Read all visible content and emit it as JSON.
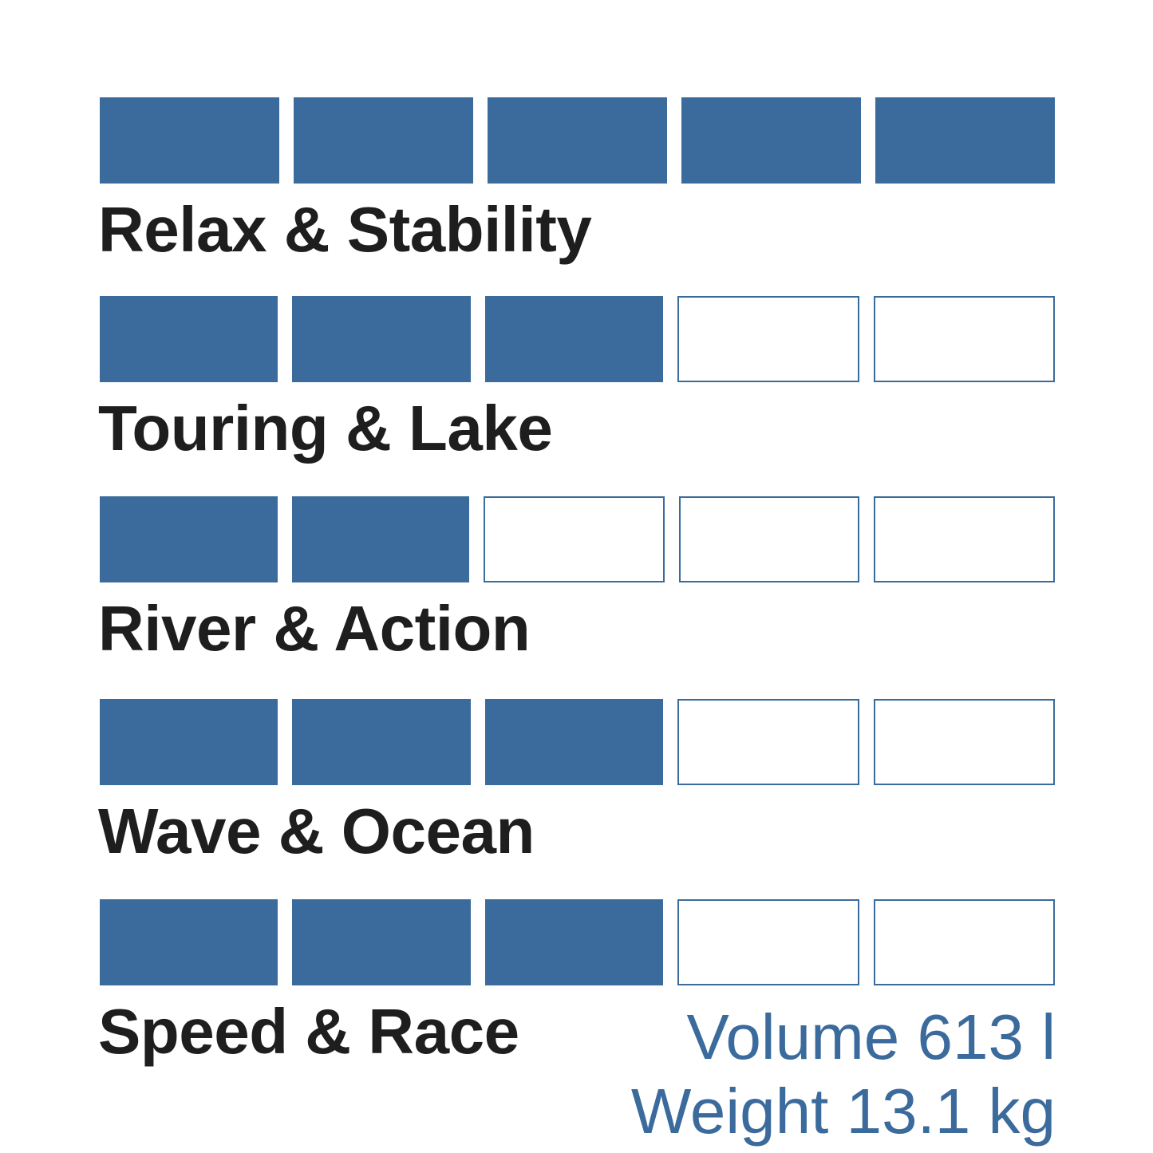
{
  "accent_color": "#3b6b9c",
  "max_rating": 5,
  "categories": [
    {
      "label": "Relax & Stability",
      "rating": 5
    },
    {
      "label": "Touring & Lake",
      "rating": 3
    },
    {
      "label": "River & Action",
      "rating": 2
    },
    {
      "label": "Wave & Ocean",
      "rating": 3
    },
    {
      "label": "Speed & Race",
      "rating": 3
    }
  ],
  "specs": {
    "volume": "Volume 613 l",
    "weight": "Weight 13.1 kg"
  }
}
